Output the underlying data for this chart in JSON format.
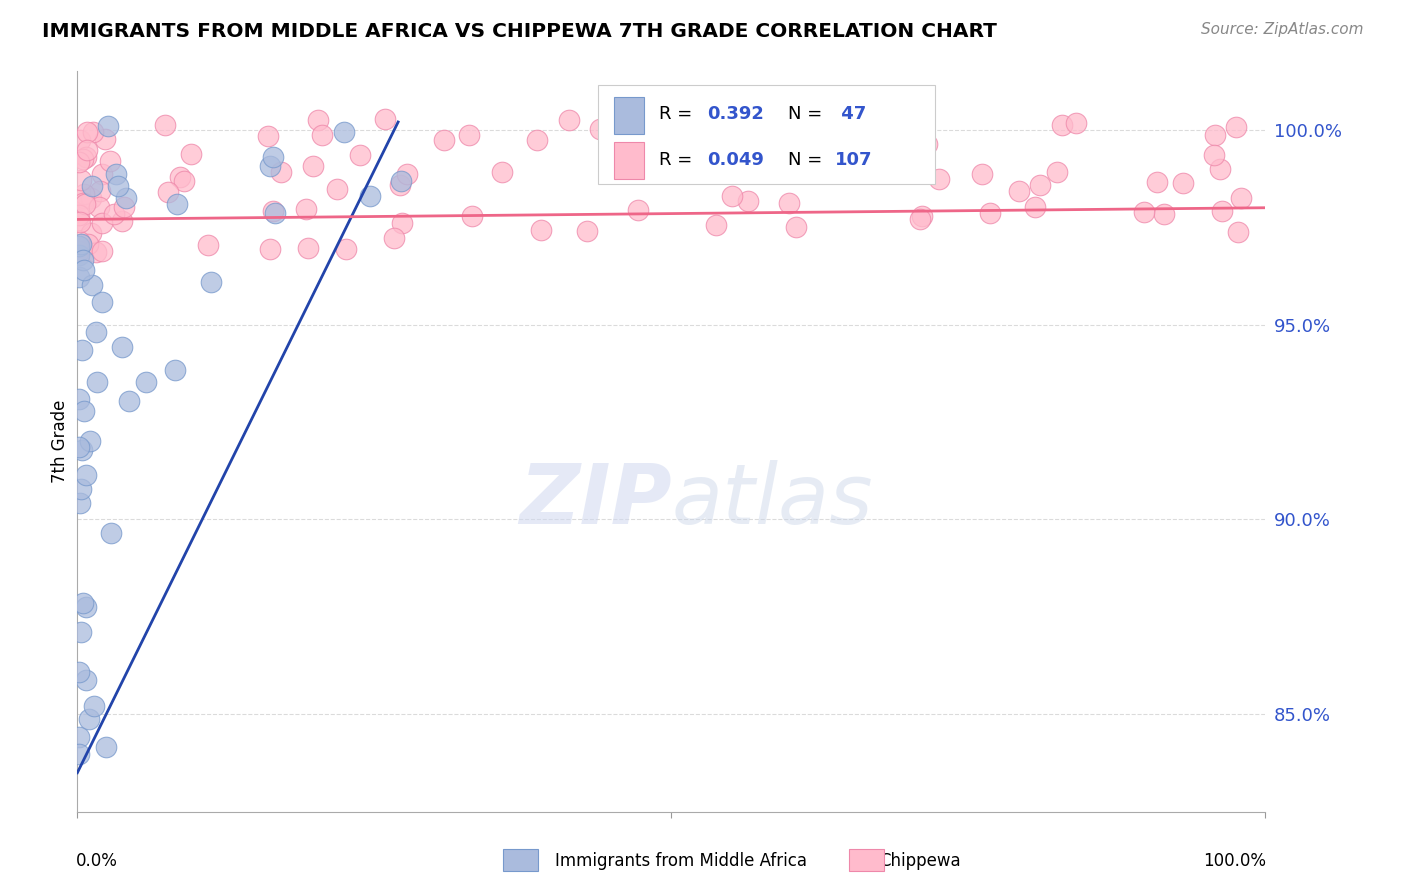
{
  "title": "IMMIGRANTS FROM MIDDLE AFRICA VS CHIPPEWA 7TH GRADE CORRELATION CHART",
  "source": "Source: ZipAtlas.com",
  "ylabel": "7th Grade",
  "xmin": 0.0,
  "xmax": 1.0,
  "ymin": 0.825,
  "ymax": 1.015,
  "yticks": [
    0.85,
    0.9,
    0.95,
    1.0
  ],
  "ytick_labels": [
    "85.0%",
    "90.0%",
    "95.0%",
    "100.0%"
  ],
  "grid_color": "#cccccc",
  "blue_color": "#aabbdd",
  "blue_edge_color": "#7799cc",
  "pink_color": "#ffbbcc",
  "pink_edge_color": "#ee88aa",
  "blue_line_color": "#2244aa",
  "pink_line_color": "#ee6688",
  "watermark_zip_color": "#d0d8f0",
  "watermark_atlas_color": "#c8d4e8",
  "legend_blue_fill": "#aabbdd",
  "legend_pink_fill": "#ffbbcc",
  "legend_text_color": "#3355cc",
  "blue_trend_x": [
    0.0,
    0.27
  ],
  "blue_trend_y": [
    0.835,
    1.002
  ],
  "pink_trend_x": [
    0.0,
    1.0
  ],
  "pink_trend_y": [
    0.977,
    0.98
  ]
}
